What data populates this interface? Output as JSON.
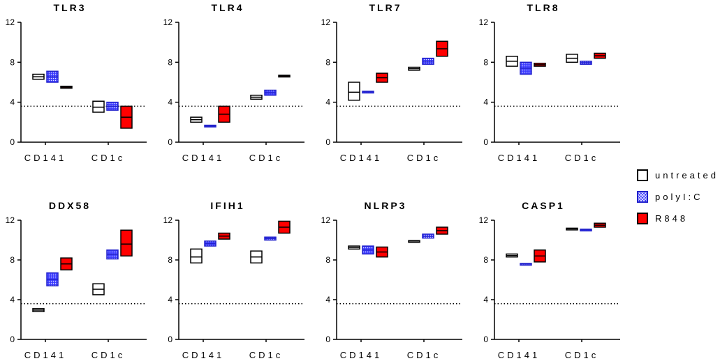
{
  "chart_data": [
    {
      "type": "floating-bar",
      "title": "TLR3",
      "categories": [
        "CD141",
        "CD1c"
      ],
      "ylim": [
        0,
        12
      ],
      "yticks": [
        0,
        4,
        8,
        12
      ],
      "threshold": 3.6,
      "series": [
        {
          "name": "untreated",
          "ranges": [
            [
              6.3,
              6.8
            ],
            [
              3.0,
              4.1
            ]
          ],
          "medians": [
            6.55,
            3.5
          ]
        },
        {
          "name": "polyI:C",
          "ranges": [
            [
              6.0,
              7.1
            ],
            [
              3.2,
              4.0
            ]
          ],
          "medians": [
            6.55,
            3.6
          ]
        },
        {
          "name": "R848",
          "ranges": [
            [
              5.4,
              5.6
            ],
            [
              1.4,
              3.6
            ]
          ],
          "medians": [
            5.5,
            2.5
          ]
        }
      ]
    },
    {
      "type": "floating-bar",
      "title": "TLR4",
      "categories": [
        "CD141",
        "CD1c"
      ],
      "ylim": [
        0,
        12
      ],
      "yticks": [
        0,
        4,
        8,
        12
      ],
      "threshold": 3.6,
      "series": [
        {
          "name": "untreated",
          "ranges": [
            [
              2.0,
              2.5
            ],
            [
              4.3,
              4.7
            ]
          ],
          "medians": [
            2.25,
            4.5
          ]
        },
        {
          "name": "polyI:C",
          "ranges": [
            [
              1.55,
              1.7
            ],
            [
              4.7,
              5.2
            ]
          ],
          "medians": [
            1.62,
            4.95
          ]
        },
        {
          "name": "R848",
          "ranges": [
            [
              2.0,
              3.6
            ],
            [
              6.55,
              6.7
            ]
          ],
          "medians": [
            2.8,
            6.62
          ]
        }
      ]
    },
    {
      "type": "floating-bar",
      "title": "TLR7",
      "categories": [
        "CD141",
        "CD1c"
      ],
      "ylim": [
        0,
        12
      ],
      "yticks": [
        0,
        4,
        8,
        12
      ],
      "threshold": 3.6,
      "series": [
        {
          "name": "untreated",
          "ranges": [
            [
              4.2,
              6.0
            ],
            [
              7.2,
              7.5
            ]
          ],
          "medians": [
            5.0,
            7.35
          ]
        },
        {
          "name": "polyI:C",
          "ranges": [
            [
              5.0,
              5.1
            ],
            [
              7.8,
              8.4
            ]
          ],
          "medians": [
            5.05,
            8.1
          ]
        },
        {
          "name": "R848",
          "ranges": [
            [
              6.0,
              6.9
            ],
            [
              8.6,
              10.1
            ]
          ],
          "medians": [
            6.45,
            9.35
          ]
        }
      ]
    },
    {
      "type": "floating-bar",
      "title": "TLR8",
      "categories": [
        "CD141",
        "CD1c"
      ],
      "ylim": [
        0,
        12
      ],
      "yticks": [
        0,
        4,
        8,
        12
      ],
      "threshold": 3.6,
      "series": [
        {
          "name": "untreated",
          "ranges": [
            [
              7.6,
              8.6
            ],
            [
              8.0,
              8.8
            ]
          ],
          "medians": [
            8.1,
            8.4
          ]
        },
        {
          "name": "polyI:C",
          "ranges": [
            [
              6.8,
              8.0
            ],
            [
              7.8,
              8.1
            ]
          ],
          "medians": [
            7.4,
            7.95
          ]
        },
        {
          "name": "R848",
          "ranges": [
            [
              7.6,
              7.9
            ],
            [
              8.4,
              8.9
            ]
          ],
          "medians": [
            7.75,
            8.65
          ]
        }
      ]
    },
    {
      "type": "floating-bar",
      "title": "DDX58",
      "categories": [
        "CD141",
        "CD1c"
      ],
      "ylim": [
        0,
        12
      ],
      "yticks": [
        0,
        4,
        8,
        12
      ],
      "threshold": 3.6,
      "series": [
        {
          "name": "untreated",
          "ranges": [
            [
              2.8,
              3.1
            ],
            [
              4.5,
              5.6
            ]
          ],
          "medians": [
            2.95,
            5.05
          ]
        },
        {
          "name": "polyI:C",
          "ranges": [
            [
              5.4,
              6.7
            ],
            [
              8.1,
              9.0
            ]
          ],
          "medians": [
            6.05,
            8.55
          ]
        },
        {
          "name": "R848",
          "ranges": [
            [
              7.0,
              8.2
            ],
            [
              8.4,
              11.0
            ]
          ],
          "medians": [
            7.6,
            9.6
          ]
        }
      ]
    },
    {
      "type": "floating-bar",
      "title": "IFIH1",
      "categories": [
        "CD141",
        "CD1c"
      ],
      "ylim": [
        0,
        12
      ],
      "yticks": [
        0,
        4,
        8,
        12
      ],
      "threshold": 3.6,
      "series": [
        {
          "name": "untreated",
          "ranges": [
            [
              7.7,
              9.1
            ],
            [
              7.7,
              8.9
            ]
          ],
          "medians": [
            8.3,
            8.3
          ]
        },
        {
          "name": "polyI:C",
          "ranges": [
            [
              9.4,
              9.9
            ],
            [
              10.0,
              10.3
            ]
          ],
          "medians": [
            9.65,
            10.15
          ]
        },
        {
          "name": "R848",
          "ranges": [
            [
              10.1,
              10.7
            ],
            [
              10.7,
              11.9
            ]
          ],
          "medians": [
            10.4,
            11.3
          ]
        }
      ]
    },
    {
      "type": "floating-bar",
      "title": "NLRP3",
      "categories": [
        "CD141",
        "CD1c"
      ],
      "ylim": [
        0,
        12
      ],
      "yticks": [
        0,
        4,
        8,
        12
      ],
      "threshold": 3.6,
      "series": [
        {
          "name": "untreated",
          "ranges": [
            [
              9.1,
              9.4
            ],
            [
              9.85,
              9.95
            ]
          ],
          "medians": [
            9.25,
            9.9
          ]
        },
        {
          "name": "polyI:C",
          "ranges": [
            [
              8.6,
              9.4
            ],
            [
              10.2,
              10.6
            ]
          ],
          "medians": [
            9.0,
            10.4
          ]
        },
        {
          "name": "R848",
          "ranges": [
            [
              8.3,
              9.3
            ],
            [
              10.6,
              11.3
            ]
          ],
          "medians": [
            8.8,
            10.95
          ]
        }
      ]
    },
    {
      "type": "floating-bar",
      "title": "CASP1",
      "categories": [
        "CD141",
        "CD1c"
      ],
      "ylim": [
        0,
        12
      ],
      "yticks": [
        0,
        4,
        8,
        12
      ],
      "threshold": 3.6,
      "series": [
        {
          "name": "untreated",
          "ranges": [
            [
              8.3,
              8.6
            ],
            [
              11.1,
              11.2
            ]
          ],
          "medians": [
            8.45,
            11.15
          ]
        },
        {
          "name": "polyI:C",
          "ranges": [
            [
              7.55,
              7.65
            ],
            [
              11.0,
              11.1
            ]
          ],
          "medians": [
            7.6,
            11.05
          ]
        },
        {
          "name": "R848",
          "ranges": [
            [
              7.8,
              9.0
            ],
            [
              11.3,
              11.7
            ]
          ],
          "medians": [
            8.4,
            11.5
          ]
        }
      ]
    }
  ],
  "legend": [
    {
      "name": "untreated",
      "label": "untreated"
    },
    {
      "name": "polyI:C",
      "label": "polyI:C"
    },
    {
      "name": "R848",
      "label": "R848"
    }
  ],
  "colors": {
    "untreated": "#ffffff",
    "polyI:C": "#3b3bff",
    "R848": "#ff0000",
    "outline": "#000000",
    "polyI:C_outline": "#2222cc"
  }
}
